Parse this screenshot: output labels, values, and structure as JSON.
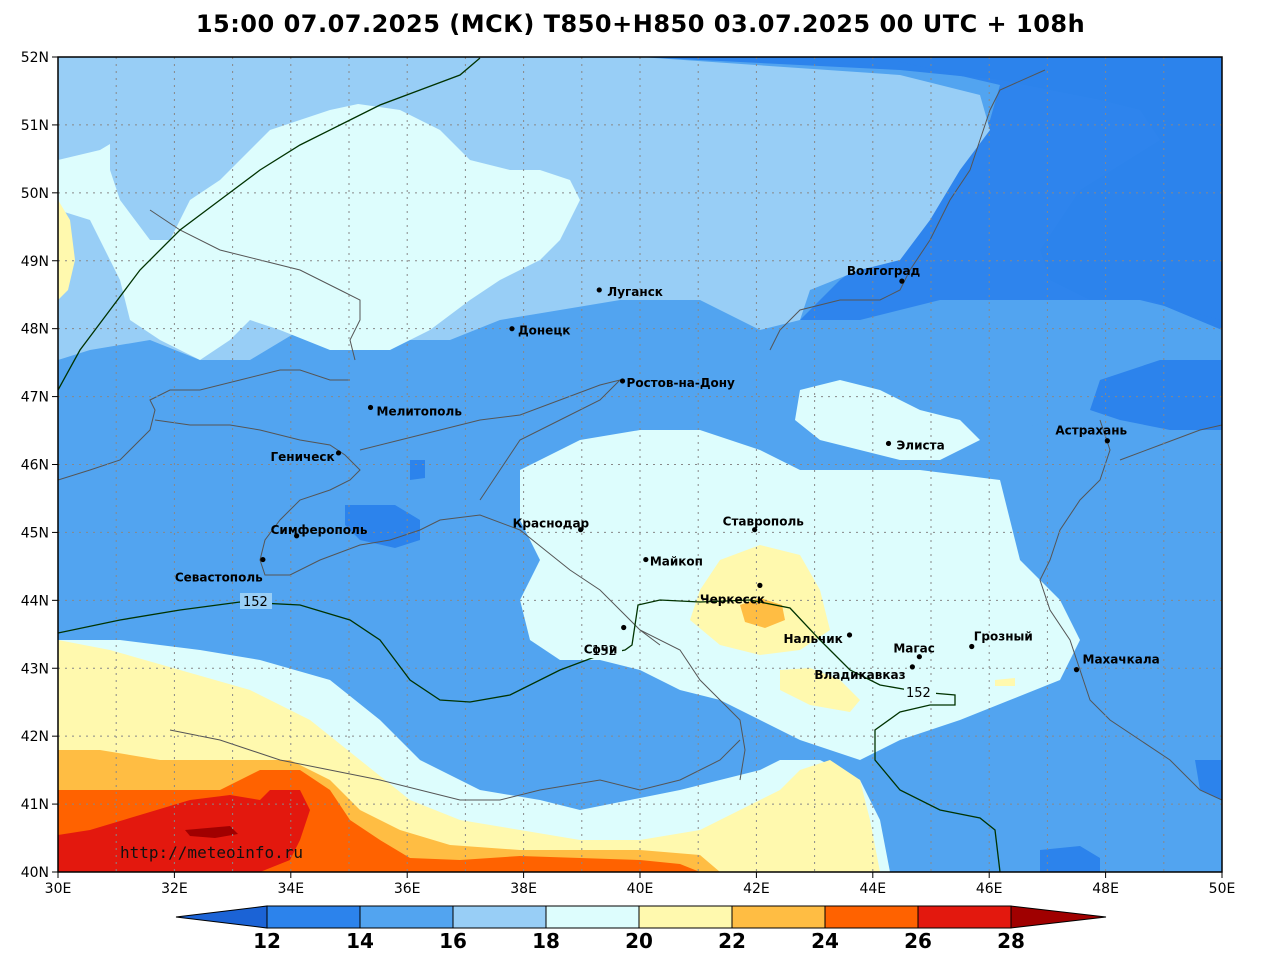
{
  "title": "15:00 07.07.2025 (МСК) T850+H850 03.07.2025 00 UTC + 108h",
  "watermark": "http://meteoinfo.ru",
  "colors": {
    "c12": "#1b63d6",
    "c14": "#2c83ec",
    "c16": "#52a4f0",
    "c18": "#98cef6",
    "c20": "#ddfdfd",
    "c22": "#fff9ae",
    "c24": "#ffbd43",
    "c26": "#ff6200",
    "c28": "#e3180e",
    "c30": "#a00000"
  },
  "axes": {
    "lat_labels": [
      "52N",
      "51N",
      "50N",
      "49N",
      "48N",
      "47N",
      "46N",
      "45N",
      "44N",
      "43N",
      "42N",
      "41N",
      "40N"
    ],
    "lon_labels": [
      "30E",
      "32E",
      "34E",
      "36E",
      "38E",
      "40E",
      "42E",
      "44E",
      "46E",
      "48E",
      "50E"
    ]
  },
  "colorbar": {
    "labels": [
      "12",
      "14",
      "16",
      "18",
      "20",
      "22",
      "24",
      "26",
      "28"
    ]
  },
  "contours": {
    "label": "152"
  },
  "cities": [
    {
      "name": "Волгоград",
      "lon": 44.5,
      "lat": 48.7
    },
    {
      "name": "Луганск",
      "lon": 39.3,
      "lat": 48.57
    },
    {
      "name": "Донецк",
      "lon": 37.8,
      "lat": 48.0
    },
    {
      "name": "Ростов-на-Дону",
      "lon": 39.7,
      "lat": 47.23
    },
    {
      "name": "Мелитополь",
      "lon": 35.37,
      "lat": 46.84
    },
    {
      "name": "Геническ",
      "lon": 34.82,
      "lat": 46.17
    },
    {
      "name": "Элиста",
      "lon": 44.27,
      "lat": 46.31
    },
    {
      "name": "Астрахань",
      "lon": 48.03,
      "lat": 46.35
    },
    {
      "name": "Симферополь",
      "lon": 34.1,
      "lat": 44.95
    },
    {
      "name": "Севастополь",
      "lon": 33.52,
      "lat": 44.6
    },
    {
      "name": "Краснодар",
      "lon": 38.98,
      "lat": 45.04
    },
    {
      "name": "Майкоп",
      "lon": 40.1,
      "lat": 44.6
    },
    {
      "name": "Ставрополь",
      "lon": 41.97,
      "lat": 45.04
    },
    {
      "name": "Черкесск",
      "lon": 42.06,
      "lat": 44.22
    },
    {
      "name": "Нальчик",
      "lon": 43.6,
      "lat": 43.49
    },
    {
      "name": "Сочи",
      "lon": 39.72,
      "lat": 43.6
    },
    {
      "name": "Магас",
      "lon": 44.8,
      "lat": 43.17
    },
    {
      "name": "Грозный",
      "lon": 45.7,
      "lat": 43.32
    },
    {
      "name": "Владикавказ",
      "lon": 44.68,
      "lat": 43.02
    },
    {
      "name": "Махачкала",
      "lon": 47.5,
      "lat": 42.98
    }
  ]
}
